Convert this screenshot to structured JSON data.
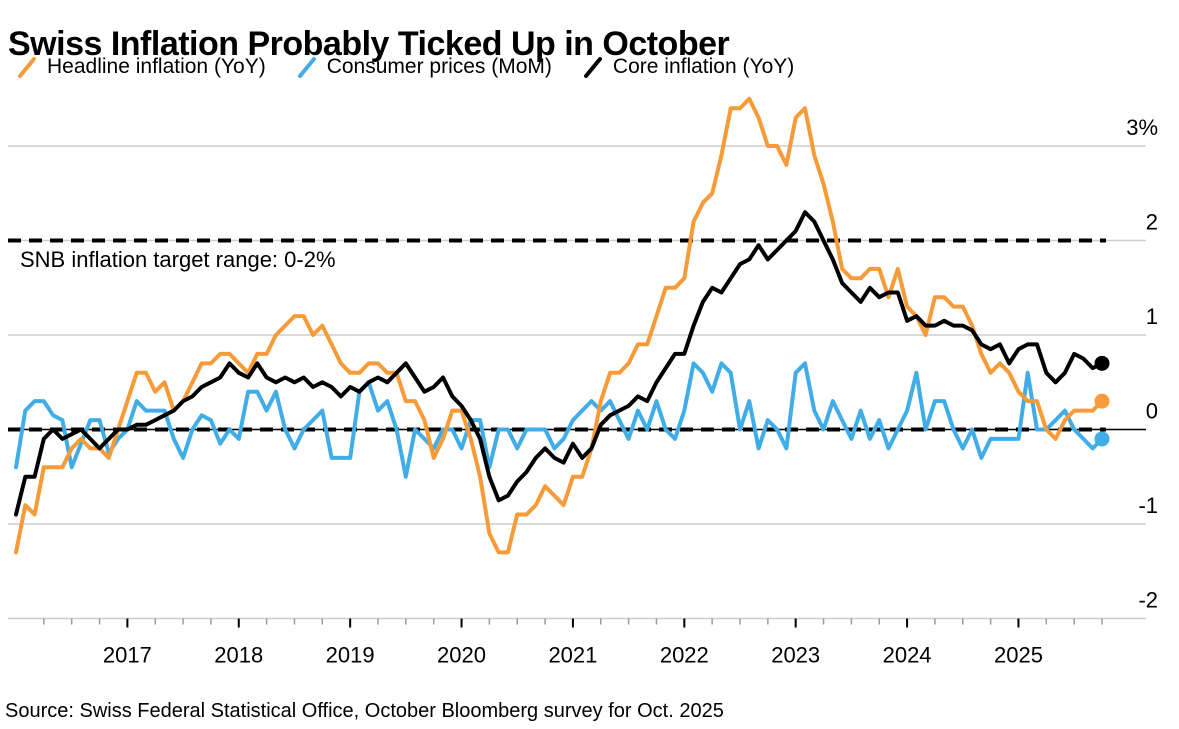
{
  "title": "Swiss Inflation Probably Ticked Up in October",
  "snb_label": "SNB inflation target range: 0-2%",
  "source": "Source: Swiss Federal Statistical Office, October Bloomberg survey for Oct. 2025",
  "legend": [
    {
      "label": "Headline inflation (YoY)",
      "color": "#F79B39"
    },
    {
      "label": "Consumer prices (MoM)",
      "color": "#41ADE8"
    },
    {
      "label": "Core inflation (YoY)",
      "color": "#000000"
    }
  ],
  "chart_data": {
    "type": "line",
    "title": "Swiss Inflation Probably Ticked Up in October",
    "x_start": "2016-01",
    "x_end": "2025-10",
    "x_frequency": "monthly",
    "x_tick_labels": [
      "2017",
      "2018",
      "2019",
      "2020",
      "2021",
      "2022",
      "2023",
      "2024",
      "2025"
    ],
    "ylim": [
      -2,
      3.6
    ],
    "y_ticks": [
      {
        "value": 3,
        "label": "3%"
      },
      {
        "value": 2,
        "label": "2"
      },
      {
        "value": 1,
        "label": "1"
      },
      {
        "value": 0,
        "label": "0"
      },
      {
        "value": -1,
        "label": "-1"
      },
      {
        "value": -2,
        "label": "-2"
      }
    ],
    "reference_lines": [
      {
        "value": 2,
        "style": "dashed",
        "color": "#000000",
        "label": "SNB inflation target range: 0-2%"
      },
      {
        "value": 0,
        "style": "dashed-over-solid",
        "color": "#000000",
        "label": ""
      }
    ],
    "legend_position": "top",
    "grid": "horizontal",
    "end_point_markers": true,
    "series": [
      {
        "name": "Headline inflation (YoY)",
        "color": "#F79B39",
        "values": [
          -1.3,
          -0.8,
          -0.9,
          -0.4,
          -0.4,
          -0.4,
          -0.2,
          -0.1,
          -0.2,
          -0.2,
          -0.3,
          0.0,
          0.3,
          0.6,
          0.6,
          0.4,
          0.5,
          0.2,
          0.3,
          0.5,
          0.7,
          0.7,
          0.8,
          0.8,
          0.7,
          0.6,
          0.8,
          0.8,
          1.0,
          1.1,
          1.2,
          1.2,
          1.0,
          1.1,
          0.9,
          0.7,
          0.6,
          0.6,
          0.7,
          0.7,
          0.6,
          0.6,
          0.3,
          0.3,
          0.1,
          -0.3,
          -0.1,
          0.2,
          0.2,
          -0.1,
          -0.5,
          -1.1,
          -1.3,
          -1.3,
          -0.9,
          -0.9,
          -0.8,
          -0.6,
          -0.7,
          -0.8,
          -0.5,
          -0.5,
          -0.2,
          0.3,
          0.6,
          0.6,
          0.7,
          0.9,
          0.9,
          1.2,
          1.5,
          1.5,
          1.6,
          2.2,
          2.4,
          2.5,
          2.9,
          3.4,
          3.4,
          3.5,
          3.3,
          3.0,
          3.0,
          2.8,
          3.3,
          3.4,
          2.9,
          2.6,
          2.2,
          1.7,
          1.6,
          1.6,
          1.7,
          1.7,
          1.4,
          1.7,
          1.3,
          1.2,
          1.0,
          1.4,
          1.4,
          1.3,
          1.3,
          1.1,
          0.8,
          0.6,
          0.7,
          0.6,
          0.4,
          0.3,
          0.3,
          0.0,
          -0.1,
          0.1,
          0.2,
          0.2,
          0.2,
          0.3
        ]
      },
      {
        "name": "Consumer prices (MoM)",
        "color": "#41ADE8",
        "values": [
          -0.4,
          0.2,
          0.3,
          0.3,
          0.15,
          0.1,
          -0.4,
          -0.15,
          0.1,
          0.1,
          -0.25,
          -0.1,
          0.0,
          0.3,
          0.2,
          0.2,
          0.2,
          -0.1,
          -0.3,
          0.0,
          0.15,
          0.1,
          -0.15,
          0.0,
          -0.1,
          0.4,
          0.4,
          0.2,
          0.4,
          0.0,
          -0.2,
          0.0,
          0.1,
          0.2,
          -0.3,
          -0.3,
          -0.3,
          0.4,
          0.5,
          0.2,
          0.3,
          0.0,
          -0.5,
          0.0,
          -0.1,
          -0.2,
          0.0,
          0.0,
          -0.2,
          0.1,
          0.1,
          -0.4,
          0.0,
          0.0,
          -0.2,
          0.0,
          0.0,
          0.0,
          -0.2,
          -0.1,
          0.1,
          0.2,
          0.3,
          0.2,
          0.3,
          0.1,
          -0.1,
          0.2,
          0.0,
          0.3,
          0.0,
          -0.1,
          0.2,
          0.7,
          0.6,
          0.4,
          0.7,
          0.6,
          0.0,
          0.3,
          -0.2,
          0.1,
          0.0,
          -0.2,
          0.6,
          0.7,
          0.2,
          0.0,
          0.3,
          0.1,
          -0.1,
          0.2,
          -0.1,
          0.1,
          -0.2,
          0.0,
          0.2,
          0.6,
          0.0,
          0.3,
          0.3,
          0.0,
          -0.2,
          0.0,
          -0.3,
          -0.1,
          -0.1,
          -0.1,
          -0.1,
          0.6,
          0.0,
          0.0,
          0.1,
          0.2,
          0.0,
          -0.1,
          -0.2,
          -0.1
        ]
      },
      {
        "name": "Core inflation (YoY)",
        "color": "#000000",
        "values": [
          -0.9,
          -0.5,
          -0.5,
          -0.1,
          0.0,
          -0.1,
          -0.05,
          0.0,
          -0.1,
          -0.2,
          -0.1,
          0.0,
          0.0,
          0.05,
          0.05,
          0.1,
          0.15,
          0.2,
          0.3,
          0.35,
          0.45,
          0.5,
          0.55,
          0.7,
          0.6,
          0.55,
          0.7,
          0.55,
          0.5,
          0.55,
          0.5,
          0.55,
          0.45,
          0.5,
          0.45,
          0.35,
          0.45,
          0.4,
          0.5,
          0.55,
          0.5,
          0.6,
          0.7,
          0.55,
          0.4,
          0.45,
          0.55,
          0.35,
          0.25,
          0.1,
          -0.1,
          -0.5,
          -0.75,
          -0.7,
          -0.55,
          -0.45,
          -0.3,
          -0.2,
          -0.3,
          -0.35,
          -0.15,
          -0.3,
          -0.2,
          0.05,
          0.15,
          0.2,
          0.25,
          0.35,
          0.3,
          0.5,
          0.65,
          0.8,
          0.8,
          1.1,
          1.35,
          1.5,
          1.45,
          1.6,
          1.75,
          1.8,
          1.95,
          1.8,
          1.9,
          2.0,
          2.1,
          2.3,
          2.2,
          2.0,
          1.8,
          1.55,
          1.45,
          1.35,
          1.5,
          1.4,
          1.45,
          1.45,
          1.15,
          1.2,
          1.1,
          1.1,
          1.15,
          1.1,
          1.1,
          1.05,
          0.9,
          0.85,
          0.9,
          0.7,
          0.85,
          0.9,
          0.9,
          0.6,
          0.5,
          0.6,
          0.8,
          0.75,
          0.65,
          0.7
        ]
      }
    ]
  }
}
